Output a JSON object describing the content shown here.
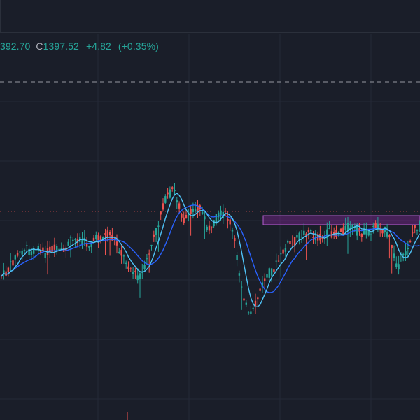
{
  "legend": {
    "low_partial": "392.70",
    "close_label": "C",
    "close_value": "1397.52",
    "change": "+4.82",
    "change_pct": "(+0.35%)"
  },
  "colors": {
    "background": "#1a1e29",
    "grid": "#242937",
    "up": "#26a69a",
    "down": "#ef5350",
    "ma_fast": "#4fc3f7",
    "ma_slow": "#2962ff",
    "zone": "#9c27b0",
    "dashed_level": "#9598a1",
    "dotted_level": "#ef5350"
  },
  "icons": [
    "chart-settings"
  ]
}
